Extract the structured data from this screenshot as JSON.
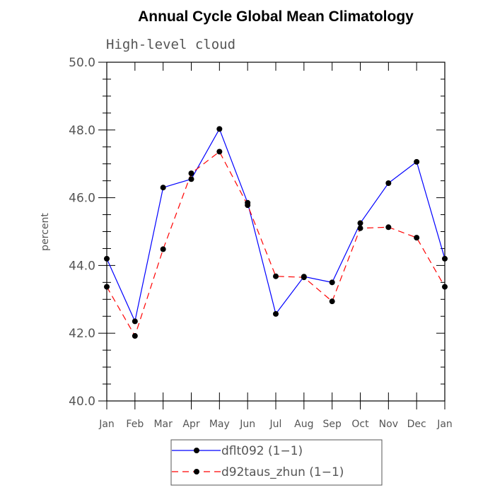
{
  "chart_data": {
    "type": "line",
    "title": "Annual Cycle Global Mean Climatology",
    "subtitle": "High-level cloud",
    "ylabel": "percent",
    "xlabel": "",
    "categories": [
      "Jan",
      "Feb",
      "Mar",
      "Apr",
      "May",
      "Jun",
      "Jul",
      "Aug",
      "Sep",
      "Oct",
      "Nov",
      "Dec",
      "Jan"
    ],
    "ylim": [
      40.0,
      50.0
    ],
    "yticks": [
      "40.0",
      "42.0",
      "44.0",
      "46.0",
      "48.0",
      "50.0"
    ],
    "series": [
      {
        "name": "dflt092 (1−1)",
        "color": "#0000ff",
        "dash": "solid",
        "values": [
          44.2,
          42.35,
          46.3,
          46.55,
          48.03,
          45.85,
          42.57,
          43.67,
          43.5,
          45.25,
          46.43,
          47.06,
          44.2
        ]
      },
      {
        "name": "d92taus_zhun (1−1)",
        "color": "#ff0000",
        "dash": "dashed",
        "values": [
          43.37,
          41.92,
          44.48,
          46.72,
          47.36,
          45.78,
          43.68,
          43.65,
          42.94,
          45.1,
          45.13,
          44.82,
          43.37
        ]
      }
    ],
    "legend_position": "bottom-center"
  }
}
